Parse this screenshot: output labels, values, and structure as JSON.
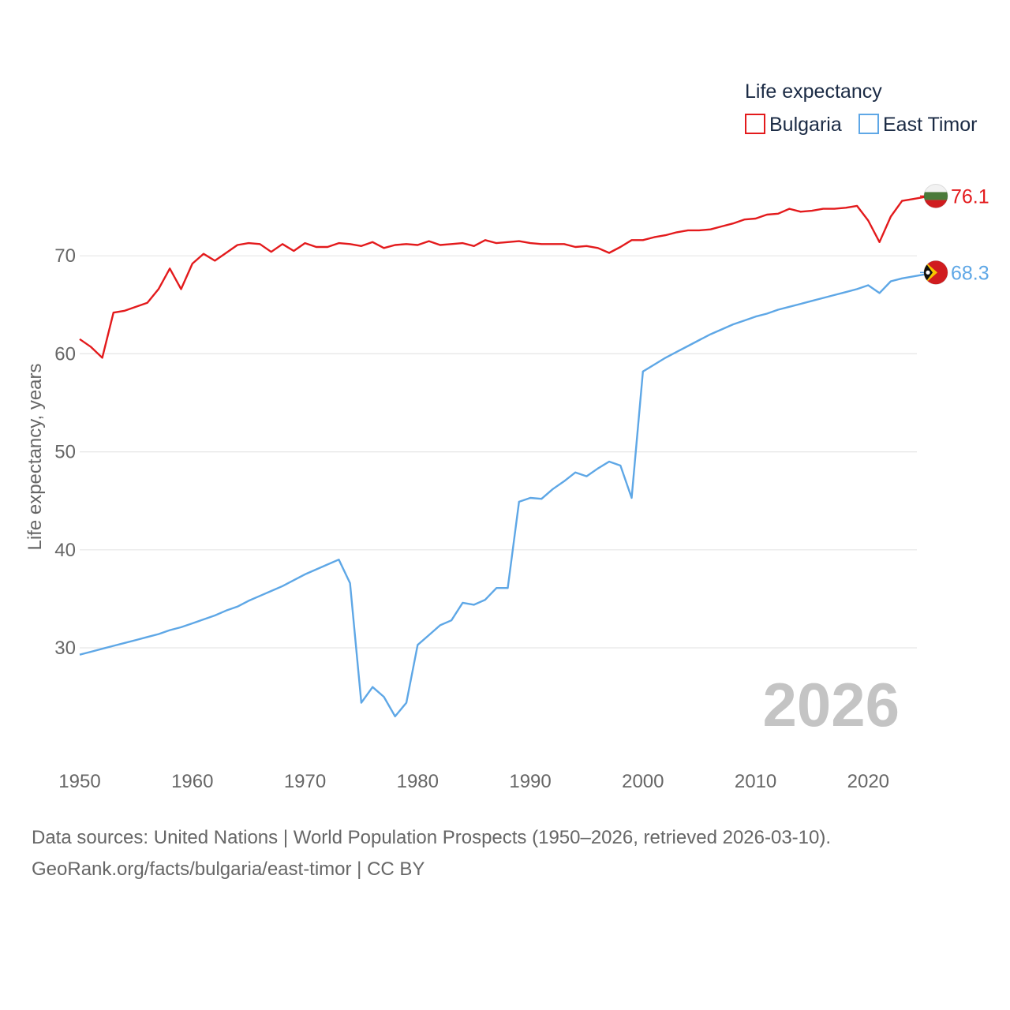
{
  "chart_data": {
    "type": "line",
    "title": "",
    "ylabel": "Life expectancy, years",
    "xlabel": "",
    "xlim": [
      1950,
      2026
    ],
    "ylim": [
      20,
      80
    ],
    "x_ticks": [
      "1950",
      "1960",
      "1970",
      "1980",
      "1990",
      "2000",
      "2010",
      "2020"
    ],
    "y_ticks": [
      "30",
      "40",
      "50",
      "60",
      "70"
    ],
    "grid": true,
    "legend_title": "Life expectancy",
    "legend_position": "top-right",
    "current_year": "2026",
    "x": [
      1950,
      1951,
      1952,
      1953,
      1954,
      1955,
      1956,
      1957,
      1958,
      1959,
      1960,
      1961,
      1962,
      1963,
      1964,
      1965,
      1966,
      1967,
      1968,
      1969,
      1970,
      1971,
      1972,
      1973,
      1974,
      1975,
      1976,
      1977,
      1978,
      1979,
      1980,
      1981,
      1982,
      1983,
      1984,
      1985,
      1986,
      1987,
      1988,
      1989,
      1990,
      1991,
      1992,
      1993,
      1994,
      1995,
      1996,
      1997,
      1998,
      1999,
      2000,
      2001,
      2002,
      2003,
      2004,
      2005,
      2006,
      2007,
      2008,
      2009,
      2010,
      2011,
      2012,
      2013,
      2014,
      2015,
      2016,
      2017,
      2018,
      2019,
      2020,
      2021,
      2022,
      2023,
      2024,
      2025,
      2026
    ],
    "series": [
      {
        "name": "Bulgaria",
        "color": "#e31a1c",
        "end_label": "76.1",
        "flag": "flag-bulgaria-icon",
        "values": [
          61.5,
          60.7,
          59.6,
          64.2,
          64.4,
          64.8,
          65.2,
          66.6,
          68.7,
          66.6,
          69.2,
          70.2,
          69.5,
          70.3,
          71.1,
          71.3,
          71.2,
          70.4,
          71.2,
          70.5,
          71.3,
          70.9,
          70.9,
          71.3,
          71.2,
          71.0,
          71.4,
          70.8,
          71.1,
          71.2,
          71.1,
          71.5,
          71.1,
          71.2,
          71.3,
          71.0,
          71.6,
          71.3,
          71.4,
          71.5,
          71.3,
          71.2,
          71.2,
          71.2,
          70.9,
          71.0,
          70.8,
          70.3,
          70.9,
          71.6,
          71.6,
          71.9,
          72.1,
          72.4,
          72.6,
          72.6,
          72.7,
          73.0,
          73.3,
          73.7,
          73.8,
          74.2,
          74.3,
          74.8,
          74.5,
          74.6,
          74.8,
          74.8,
          74.9,
          75.1,
          73.6,
          71.4,
          74.0,
          75.6,
          75.8,
          76.0,
          76.1
        ]
      },
      {
        "name": "East Timor",
        "color": "#5ea7e6",
        "end_label": "68.3",
        "flag": "flag-east-timor-icon",
        "values": [
          29.3,
          29.6,
          29.9,
          30.2,
          30.5,
          30.8,
          31.1,
          31.4,
          31.8,
          32.1,
          32.5,
          32.9,
          33.3,
          33.8,
          34.2,
          34.8,
          35.3,
          35.8,
          36.3,
          36.9,
          37.5,
          38.0,
          38.5,
          39.0,
          36.6,
          24.4,
          26.0,
          25.0,
          23.0,
          24.4,
          30.3,
          31.3,
          32.3,
          32.8,
          34.6,
          34.4,
          34.9,
          36.1,
          36.1,
          44.9,
          45.3,
          45.2,
          46.2,
          47.0,
          47.9,
          47.5,
          48.3,
          49.0,
          48.6,
          45.3,
          58.2,
          58.9,
          59.6,
          60.2,
          60.8,
          61.4,
          62.0,
          62.5,
          63.0,
          63.4,
          63.8,
          64.1,
          64.5,
          64.8,
          65.1,
          65.4,
          65.7,
          66.0,
          66.3,
          66.6,
          67.0,
          66.2,
          67.4,
          67.7,
          67.9,
          68.1,
          68.3
        ]
      }
    ]
  },
  "footer": {
    "line1": "Data sources: United Nations | World Population Prospects (1950–2026, retrieved 2026-03-10).",
    "line2": "GeoRank.org/facts/bulgaria/east-timor | CC BY"
  }
}
